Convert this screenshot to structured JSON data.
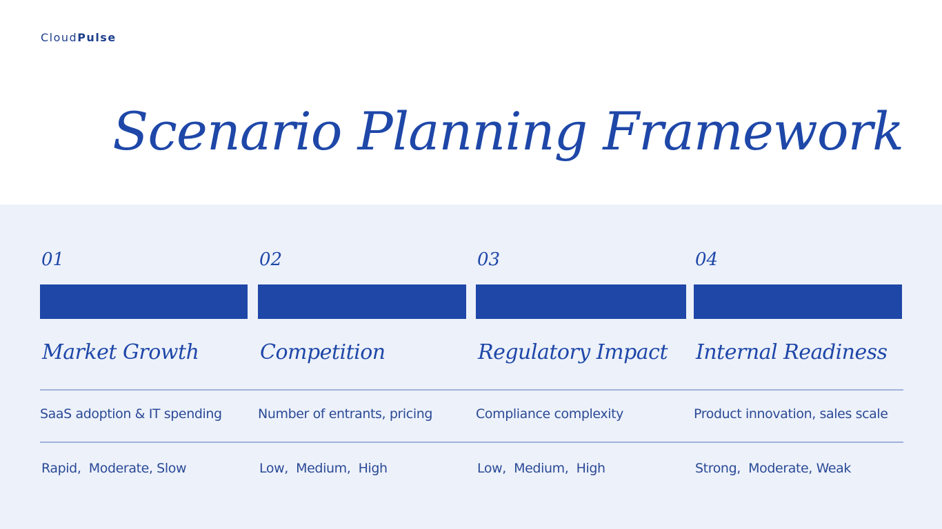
{
  "brand": {
    "light": "Cloud",
    "bold": "Pulse"
  },
  "title": "Scenario Planning Framework",
  "columns": [
    {
      "number": "01",
      "label": "Market Growth",
      "description": "SaaS adoption & IT spending",
      "levels": "Rapid,  Moderate, Slow"
    },
    {
      "number": "02",
      "label": "Competition",
      "description": "Number of entrants, pricing",
      "levels": "Low,  Medium,  High"
    },
    {
      "number": "03",
      "label": "Regulatory Impact",
      "description": "Compliance complexity",
      "levels": "Low,  Medium,  High"
    },
    {
      "number": "04",
      "label": "Internal Readiness",
      "description": "Product innovation, sales scale",
      "levels": "Strong,  Moderate, Weak"
    }
  ]
}
